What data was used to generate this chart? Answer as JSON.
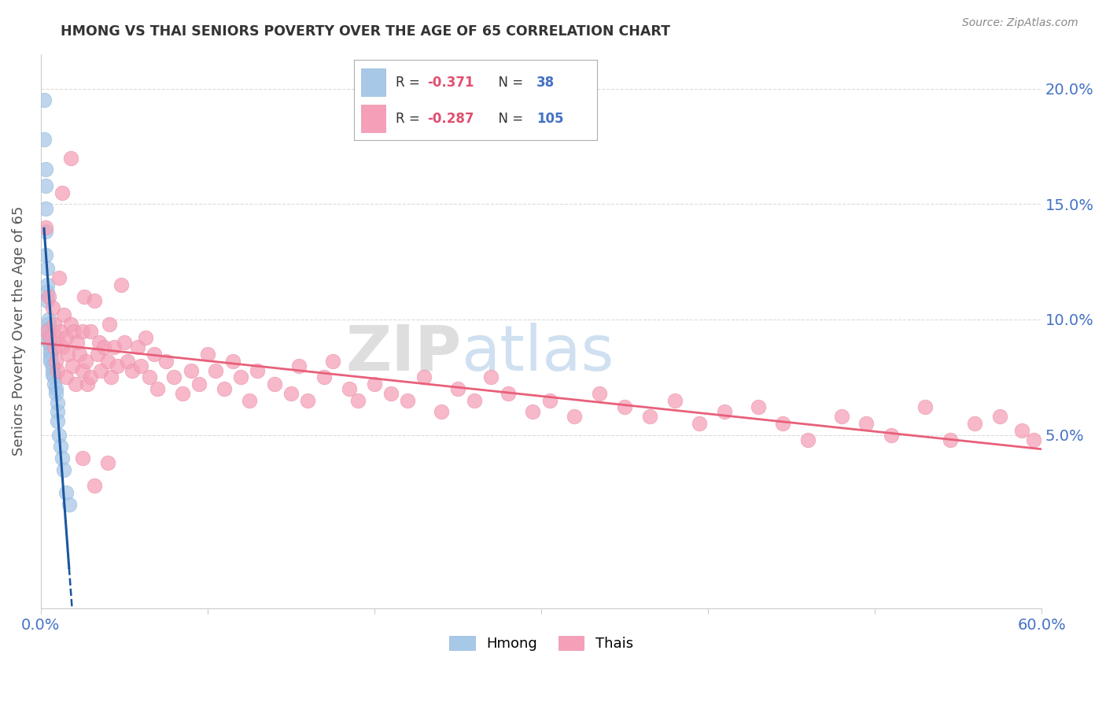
{
  "title": "HMONG VS THAI SENIORS POVERTY OVER THE AGE OF 65 CORRELATION CHART",
  "source": "Source: ZipAtlas.com",
  "ylabel": "Seniors Poverty Over the Age of 65",
  "xlim": [
    0.0,
    0.6
  ],
  "ylim": [
    -0.025,
    0.215
  ],
  "yticks": [
    0.05,
    0.1,
    0.15,
    0.2
  ],
  "ytick_labels": [
    "5.0%",
    "10.0%",
    "15.0%",
    "20.0%"
  ],
  "xticks": [
    0.0,
    0.1,
    0.2,
    0.3,
    0.4,
    0.5,
    0.6
  ],
  "hmong_R": -0.371,
  "hmong_N": 38,
  "thai_R": -0.287,
  "thai_N": 105,
  "hmong_color": "#a8c8e8",
  "thai_color": "#f5a0b8",
  "hmong_line_color": "#1a56a0",
  "thai_line_color": "#e8607a",
  "watermark_zip": "ZIP",
  "watermark_atlas": "atlas",
  "background_color": "#ffffff",
  "grid_color": "#d8d8d8",
  "title_color": "#333333",
  "axis_label_color": "#4472c4",
  "legend_R_color": "#e05070",
  "legend_N_color": "#4472c4",
  "hmong_x": [
    0.002,
    0.002,
    0.003,
    0.003,
    0.003,
    0.003,
    0.003,
    0.004,
    0.004,
    0.004,
    0.004,
    0.005,
    0.005,
    0.005,
    0.005,
    0.005,
    0.005,
    0.006,
    0.006,
    0.006,
    0.006,
    0.006,
    0.007,
    0.007,
    0.007,
    0.008,
    0.008,
    0.009,
    0.009,
    0.01,
    0.01,
    0.01,
    0.011,
    0.012,
    0.013,
    0.014,
    0.015,
    0.017
  ],
  "hmong_y": [
    0.195,
    0.178,
    0.165,
    0.158,
    0.148,
    0.138,
    0.128,
    0.122,
    0.115,
    0.112,
    0.108,
    0.1,
    0.098,
    0.096,
    0.094,
    0.092,
    0.09,
    0.088,
    0.086,
    0.085,
    0.083,
    0.082,
    0.08,
    0.078,
    0.076,
    0.075,
    0.072,
    0.07,
    0.068,
    0.064,
    0.06,
    0.056,
    0.05,
    0.045,
    0.04,
    0.035,
    0.025,
    0.02
  ],
  "thai_x": [
    0.003,
    0.004,
    0.005,
    0.006,
    0.007,
    0.008,
    0.008,
    0.009,
    0.01,
    0.01,
    0.011,
    0.012,
    0.013,
    0.014,
    0.015,
    0.015,
    0.016,
    0.018,
    0.019,
    0.02,
    0.021,
    0.022,
    0.023,
    0.025,
    0.025,
    0.026,
    0.027,
    0.028,
    0.03,
    0.03,
    0.032,
    0.034,
    0.035,
    0.036,
    0.038,
    0.04,
    0.041,
    0.042,
    0.044,
    0.046,
    0.048,
    0.05,
    0.052,
    0.055,
    0.058,
    0.06,
    0.063,
    0.065,
    0.068,
    0.07,
    0.075,
    0.08,
    0.085,
    0.09,
    0.095,
    0.1,
    0.105,
    0.11,
    0.115,
    0.12,
    0.125,
    0.13,
    0.14,
    0.15,
    0.155,
    0.16,
    0.17,
    0.175,
    0.185,
    0.19,
    0.2,
    0.21,
    0.22,
    0.23,
    0.24,
    0.25,
    0.26,
    0.27,
    0.28,
    0.295,
    0.305,
    0.32,
    0.335,
    0.35,
    0.365,
    0.38,
    0.395,
    0.41,
    0.43,
    0.445,
    0.46,
    0.48,
    0.495,
    0.51,
    0.53,
    0.545,
    0.56,
    0.575,
    0.588,
    0.595,
    0.013,
    0.018,
    0.025,
    0.032,
    0.04
  ],
  "thai_y": [
    0.14,
    0.095,
    0.11,
    0.092,
    0.105,
    0.088,
    0.098,
    0.082,
    0.092,
    0.078,
    0.118,
    0.095,
    0.088,
    0.102,
    0.075,
    0.092,
    0.085,
    0.098,
    0.08,
    0.095,
    0.072,
    0.09,
    0.085,
    0.095,
    0.078,
    0.11,
    0.082,
    0.072,
    0.095,
    0.075,
    0.108,
    0.085,
    0.09,
    0.078,
    0.088,
    0.082,
    0.098,
    0.075,
    0.088,
    0.08,
    0.115,
    0.09,
    0.082,
    0.078,
    0.088,
    0.08,
    0.092,
    0.075,
    0.085,
    0.07,
    0.082,
    0.075,
    0.068,
    0.078,
    0.072,
    0.085,
    0.078,
    0.07,
    0.082,
    0.075,
    0.065,
    0.078,
    0.072,
    0.068,
    0.08,
    0.065,
    0.075,
    0.082,
    0.07,
    0.065,
    0.072,
    0.068,
    0.065,
    0.075,
    0.06,
    0.07,
    0.065,
    0.075,
    0.068,
    0.06,
    0.065,
    0.058,
    0.068,
    0.062,
    0.058,
    0.065,
    0.055,
    0.06,
    0.062,
    0.055,
    0.048,
    0.058,
    0.055,
    0.05,
    0.062,
    0.048,
    0.055,
    0.058,
    0.052,
    0.048,
    0.155,
    0.17,
    0.04,
    0.028,
    0.038
  ]
}
